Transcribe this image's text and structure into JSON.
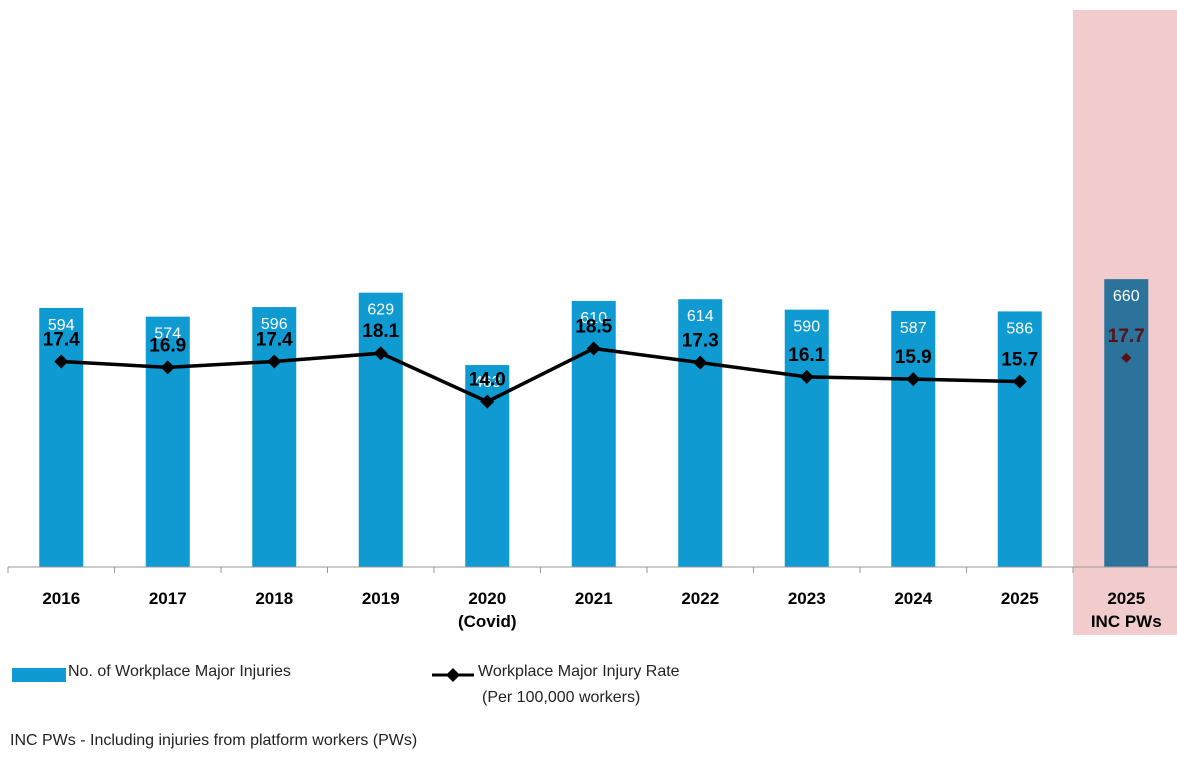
{
  "chart_data": {
    "type": "bar",
    "categories": [
      "2016",
      "2017",
      "2018",
      "2019",
      "2020",
      "2021",
      "2022",
      "2023",
      "2024",
      "2025",
      "2025"
    ],
    "category_sublabels": [
      "",
      "",
      "",
      "",
      "(Covid)",
      "",
      "",
      "",
      "",
      "",
      "INC PWs"
    ],
    "series": [
      {
        "name": "No. of Workplace Major Injuries",
        "type": "bar",
        "values": [
          594,
          574,
          596,
          629,
          463,
          610,
          614,
          590,
          587,
          586,
          660
        ],
        "labels": [
          "594",
          "574",
          "596",
          "629",
          "463",
          "610",
          "614",
          "590",
          "587",
          "586",
          "660"
        ]
      },
      {
        "name": "Workplace Major Injury Rate",
        "name_line2": "(Per 100,000 workers)",
        "type": "line",
        "values": [
          17.4,
          16.9,
          17.4,
          18.1,
          14.0,
          18.5,
          17.3,
          16.1,
          15.9,
          15.7,
          17.7
        ],
        "labels": [
          "17.4",
          "16.9",
          "17.4",
          "18.1",
          "14.0",
          "18.5",
          "17.3",
          "16.1",
          "15.9",
          "15.7",
          "17.7"
        ]
      }
    ],
    "highlight_index": 10,
    "bar_ylim": [
      0,
      1300
    ],
    "line_ylim": [
      0,
      48
    ],
    "grid": false,
    "legend_position": "bottom-left",
    "colors": {
      "bar": "#0f9ad2",
      "bar_highlight": "#2c739b",
      "highlight_band": "#f2cccc",
      "line": "#000000",
      "highlight_marker": "#5a0f12",
      "highlight_text": "#5a0f12",
      "bar_label": "#ffffff",
      "axis": "#9a9a9a"
    }
  },
  "legend": {
    "bar_label": "No. of Workplace Major Injuries",
    "line_label_1": "Workplace Major Injury Rate",
    "line_label_2": "(Per 100,000 workers)"
  },
  "footnote": "INC PWs - Including injuries from platform workers (PWs)"
}
